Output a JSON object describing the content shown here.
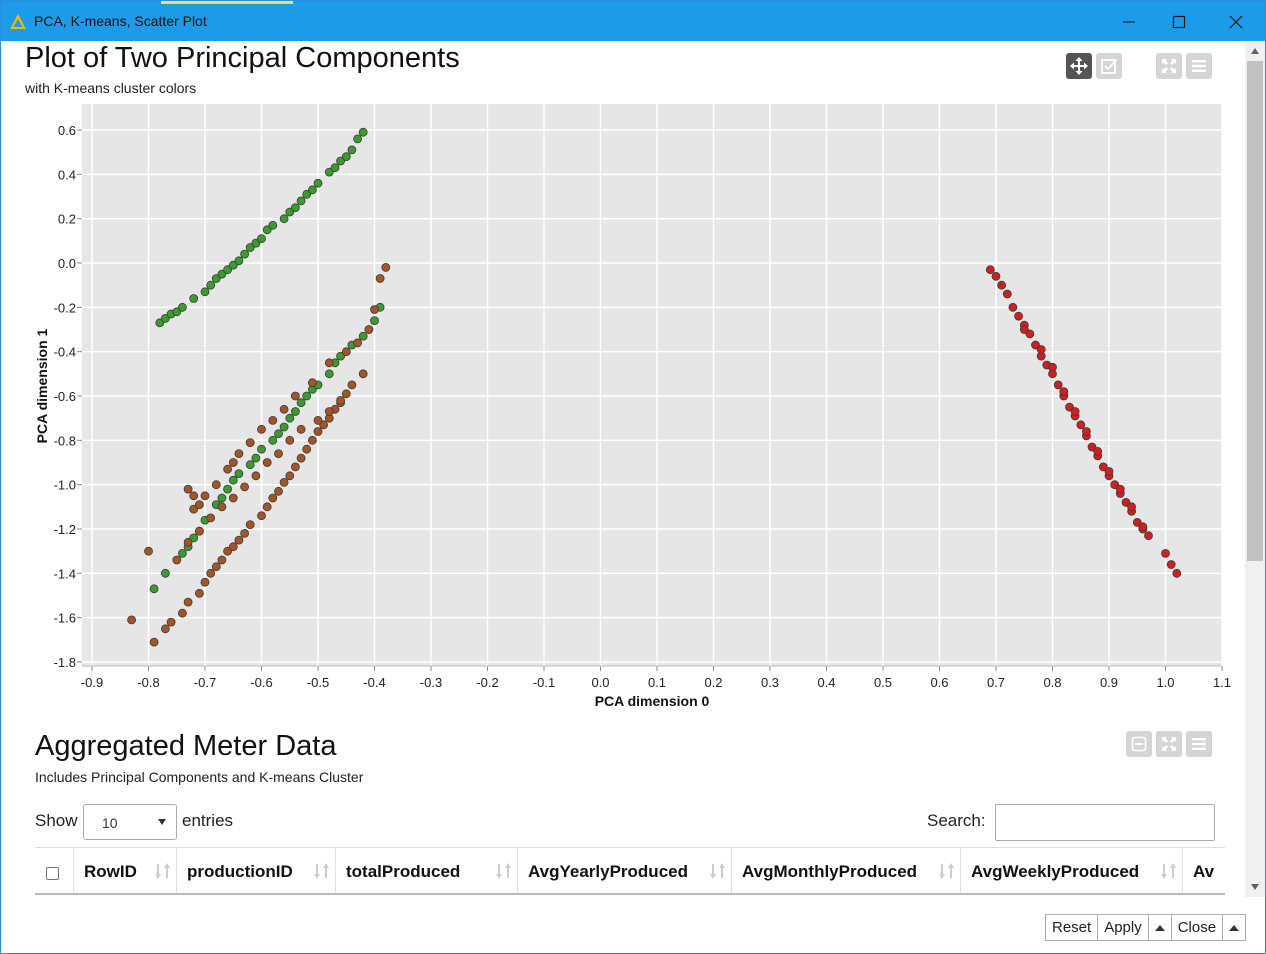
{
  "window": {
    "title": "PCA, K-means, Scatter Plot"
  },
  "plot": {
    "title": "Plot of Two Principal Components",
    "subtitle": "with K-means cluster colors"
  },
  "chart_data": {
    "type": "scatter",
    "xlabel": "PCA dimension 0",
    "ylabel": "PCA dimension 1",
    "xlim": [
      -0.9,
      1.1
    ],
    "ylim": [
      -1.8,
      0.6
    ],
    "xticks": [
      "-0.9",
      "-0.8",
      "-0.7",
      "-0.6",
      "-0.5",
      "-0.4",
      "-0.3",
      "-0.2",
      "-0.1",
      "0.0",
      "0.1",
      "0.2",
      "0.3",
      "0.4",
      "0.5",
      "0.6",
      "0.7",
      "0.8",
      "0.9",
      "1.0",
      "1.1"
    ],
    "yticks": [
      "0.6",
      "0.4",
      "0.2",
      "0.0",
      "-0.2",
      "-0.4",
      "-0.6",
      "-0.8",
      "-1.0",
      "-1.2",
      "-1.4",
      "-1.6",
      "-1.8"
    ],
    "grid": true,
    "series": [
      {
        "color": "#3a9b2e",
        "x": [
          -0.78,
          -0.77,
          -0.76,
          -0.75,
          -0.74,
          -0.72,
          -0.7,
          -0.69,
          -0.68,
          -0.67,
          -0.66,
          -0.65,
          -0.64,
          -0.63,
          -0.62,
          -0.61,
          -0.6,
          -0.59,
          -0.58,
          -0.56,
          -0.55,
          -0.54,
          -0.53,
          -0.52,
          -0.51,
          -0.5,
          -0.48,
          -0.47,
          -0.46,
          -0.45,
          -0.44,
          -0.43,
          -0.42,
          -0.79,
          -0.77,
          -0.74,
          -0.73,
          -0.72,
          -0.71,
          -0.7,
          -0.68,
          -0.67,
          -0.66,
          -0.65,
          -0.64,
          -0.62,
          -0.61,
          -0.6,
          -0.58,
          -0.57,
          -0.56,
          -0.55,
          -0.54,
          -0.53,
          -0.52,
          -0.51,
          -0.5,
          -0.48,
          -0.47,
          -0.46,
          -0.44,
          -0.42,
          -0.4,
          -0.39
        ],
        "y": [
          -0.27,
          -0.25,
          -0.23,
          -0.22,
          -0.2,
          -0.16,
          -0.13,
          -0.1,
          -0.07,
          -0.05,
          -0.03,
          -0.01,
          0.01,
          0.04,
          0.07,
          0.09,
          0.11,
          0.15,
          0.17,
          0.2,
          0.23,
          0.25,
          0.28,
          0.31,
          0.33,
          0.36,
          0.41,
          0.43,
          0.46,
          0.48,
          0.51,
          0.56,
          0.59,
          -1.47,
          -1.4,
          -1.31,
          -1.28,
          -1.24,
          -1.21,
          -1.16,
          -1.09,
          -1.06,
          -1.02,
          -0.98,
          -0.95,
          -0.91,
          -0.88,
          -0.84,
          -0.8,
          -0.77,
          -0.74,
          -0.7,
          -0.67,
          -0.63,
          -0.6,
          -0.57,
          -0.55,
          -0.5,
          -0.45,
          -0.42,
          -0.37,
          -0.33,
          -0.26,
          -0.2
        ]
      },
      {
        "color": "#a35527",
        "x": [
          -0.83,
          -0.8,
          -0.79,
          -0.77,
          -0.76,
          -0.74,
          -0.73,
          -0.71,
          -0.7,
          -0.69,
          -0.68,
          -0.67,
          -0.66,
          -0.65,
          -0.64,
          -0.63,
          -0.62,
          -0.6,
          -0.59,
          -0.58,
          -0.57,
          -0.56,
          -0.55,
          -0.54,
          -0.53,
          -0.52,
          -0.51,
          -0.5,
          -0.49,
          -0.48,
          -0.47,
          -0.46,
          -0.45,
          -0.44,
          -0.42,
          -0.4,
          -0.39,
          -0.38,
          -0.72,
          -0.7,
          -0.68,
          -0.66,
          -0.65,
          -0.64,
          -0.62,
          -0.6,
          -0.58,
          -0.56,
          -0.54,
          -0.51,
          -0.48,
          -0.45,
          -0.43,
          -0.41,
          -0.73,
          -0.71,
          -0.69,
          -0.67,
          -0.65,
          -0.63,
          -0.61,
          -0.59,
          -0.57,
          -0.55,
          -0.53,
          -0.5,
          -0.48,
          -0.46,
          -0.75,
          -0.73,
          -0.72,
          -0.71
        ],
        "y": [
          -1.61,
          -1.3,
          -1.71,
          -1.65,
          -1.62,
          -1.58,
          -1.53,
          -1.49,
          -1.44,
          -1.4,
          -1.37,
          -1.34,
          -1.3,
          -1.28,
          -1.25,
          -1.22,
          -1.18,
          -1.14,
          -1.1,
          -1.06,
          -1.03,
          -0.99,
          -0.96,
          -0.92,
          -0.88,
          -0.84,
          -0.8,
          -0.76,
          -0.73,
          -0.7,
          -0.66,
          -0.63,
          -0.59,
          -0.55,
          -0.5,
          -0.21,
          -0.07,
          -0.02,
          -1.11,
          -1.05,
          -1.0,
          -0.93,
          -0.9,
          -0.86,
          -0.81,
          -0.75,
          -0.71,
          -0.66,
          -0.6,
          -0.54,
          -0.45,
          -0.4,
          -0.36,
          -0.3,
          -1.26,
          -1.21,
          -1.15,
          -1.1,
          -1.06,
          -1.01,
          -0.96,
          -0.9,
          -0.86,
          -0.8,
          -0.75,
          -0.71,
          -0.67,
          -0.62,
          -1.34,
          -1.02,
          -1.05,
          -1.09
        ]
      },
      {
        "color": "#cf2020",
        "x": [
          0.69,
          0.7,
          0.71,
          0.72,
          0.73,
          0.74,
          0.75,
          0.76,
          0.77,
          0.78,
          0.79,
          0.8,
          0.81,
          0.82,
          0.83,
          0.84,
          0.85,
          0.86,
          0.87,
          0.88,
          0.89,
          0.9,
          0.91,
          0.92,
          0.93,
          0.94,
          0.95,
          0.96,
          0.97,
          1.0,
          1.01,
          1.02,
          0.75,
          0.78,
          0.8,
          0.82,
          0.84,
          0.86,
          0.88,
          0.9,
          0.92,
          0.94,
          0.96
        ],
        "y": [
          -0.03,
          -0.06,
          -0.1,
          -0.14,
          -0.2,
          -0.24,
          -0.28,
          -0.32,
          -0.37,
          -0.42,
          -0.46,
          -0.5,
          -0.55,
          -0.6,
          -0.65,
          -0.69,
          -0.73,
          -0.78,
          -0.83,
          -0.87,
          -0.92,
          -0.96,
          -1.0,
          -1.04,
          -1.08,
          -1.12,
          -1.17,
          -1.2,
          -1.23,
          -1.31,
          -1.36,
          -1.4,
          -0.3,
          -0.39,
          -0.47,
          -0.58,
          -0.67,
          -0.76,
          -0.85,
          -0.94,
          -1.02,
          -1.1,
          -1.19
        ]
      }
    ]
  },
  "table_section": {
    "title": "Aggregated Meter Data",
    "subtitle": "Includes Principal Components and K-means Cluster",
    "show_label": "Show",
    "entries_value": "10",
    "entries_label": "entries",
    "search_label": "Search:",
    "search_value": "",
    "columns": [
      "RowID",
      "productionID",
      "totalProduced",
      "AvgYearlyProduced",
      "AvgMonthlyProduced",
      "AvgWeeklyProduced",
      "Av"
    ]
  },
  "buttons": {
    "reset": "Reset",
    "apply": "Apply",
    "close": "Close"
  },
  "icons": {
    "pan": "move-arrows-icon",
    "select": "checkbox-select-icon",
    "fullscreen": "fullscreen-icon",
    "menu": "hamburger-menu-icon",
    "collapse": "minus-box-icon",
    "app": "knime-triangle-icon"
  }
}
